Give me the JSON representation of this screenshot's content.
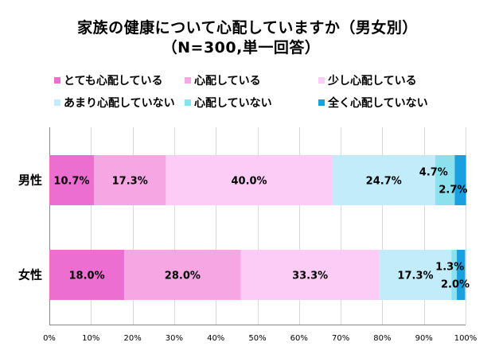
{
  "chart_data": {
    "type": "bar",
    "orientation": "horizontal",
    "stacked": true,
    "title": "家族の健康について心配していますか（男女別）",
    "subtitle": "（N=300,単一回答）",
    "categories": [
      "男性",
      "女性"
    ],
    "series": [
      {
        "name": "とても心配している",
        "color": "#ec6ed0",
        "values": [
          10.7,
          18.0
        ],
        "labels": [
          "10.7%",
          "18.0%"
        ]
      },
      {
        "name": "心配している",
        "color": "#f5a6e3",
        "values": [
          17.3,
          28.0
        ],
        "labels": [
          "17.3%",
          "28.0%"
        ]
      },
      {
        "name": "少し心配している",
        "color": "#fdccf6",
        "values": [
          40.0,
          33.3
        ],
        "labels": [
          "40.0%",
          "33.3%"
        ]
      },
      {
        "name": "あまり心配していない",
        "color": "#c3ecfa",
        "values": [
          24.7,
          17.3
        ],
        "labels": [
          "24.7%",
          "17.3%"
        ]
      },
      {
        "name": "心配していない",
        "color": "#8be2ee",
        "values": [
          4.7,
          1.3
        ],
        "labels": [
          "4.7%",
          "1.3%"
        ]
      },
      {
        "name": "全く心配していない",
        "color": "#1aa0e0",
        "values": [
          2.7,
          2.0
        ],
        "labels": [
          "2.7%",
          "2.0%"
        ]
      }
    ],
    "xlim": [
      0,
      100
    ],
    "xticks": [
      "0%",
      "10%",
      "20%",
      "30%",
      "40%",
      "50%",
      "60%",
      "70%",
      "80%",
      "90%",
      "100%"
    ],
    "grid": true,
    "legend_position": "top"
  }
}
